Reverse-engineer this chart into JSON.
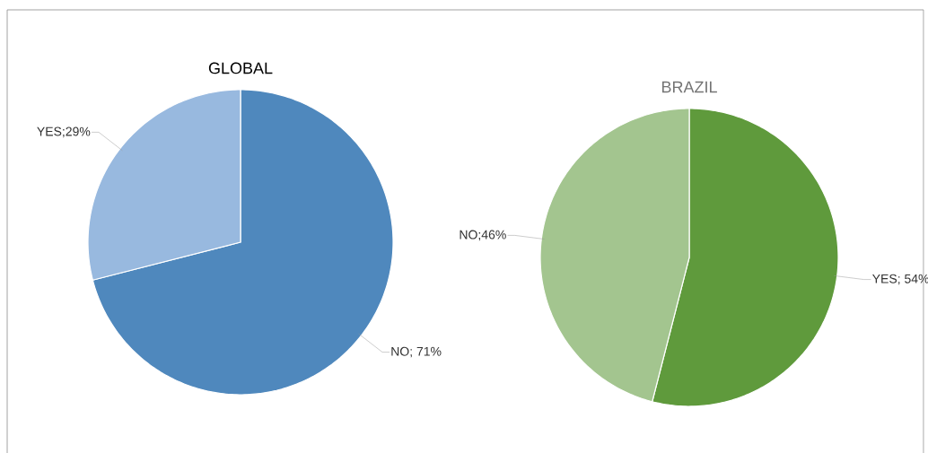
{
  "chart_data": [
    {
      "type": "pie",
      "title": "GLOBAL",
      "categories": [
        "NO",
        "YES"
      ],
      "values": [
        71,
        29
      ],
      "colors": [
        "#4f88bd",
        "#98b9df"
      ],
      "value_labels": [
        "; 71%",
        ";29%"
      ]
    },
    {
      "type": "pie",
      "title": "BRAZIL",
      "categories": [
        "YES",
        "NO"
      ],
      "values": [
        54,
        46
      ],
      "colors": [
        "#5f9a3c",
        "#a3c58f"
      ],
      "value_labels": [
        "; 54%",
        ";46%"
      ]
    }
  ]
}
